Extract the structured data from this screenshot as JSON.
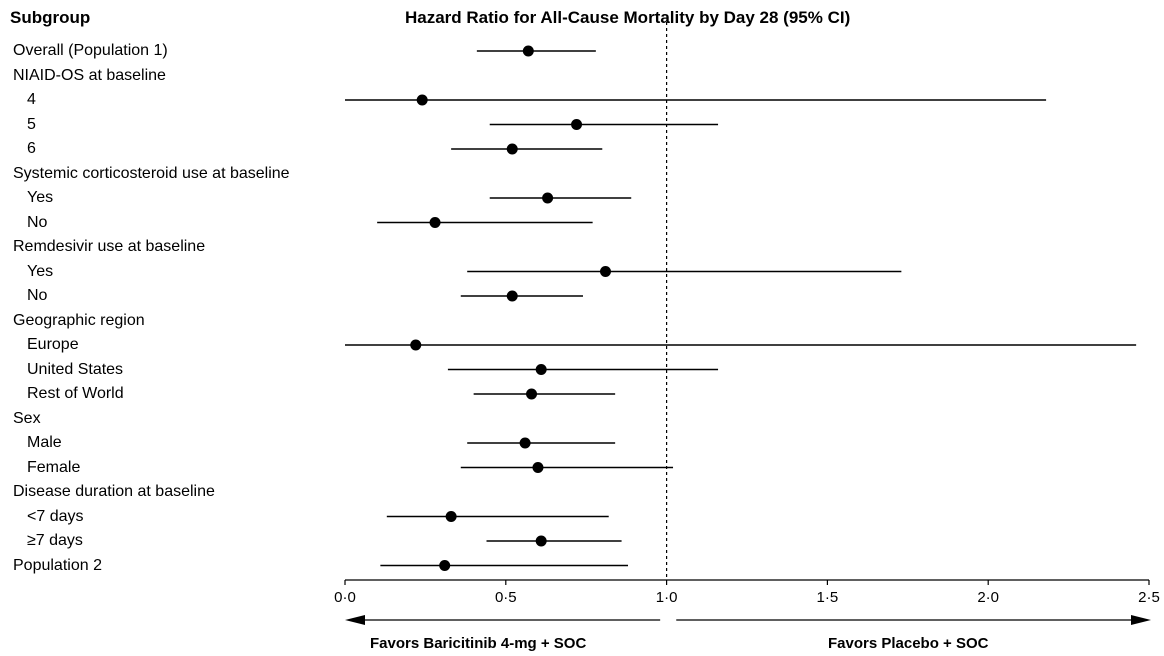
{
  "chart_data": {
    "type": "forest",
    "subgroup_header": "Subgroup",
    "title": "Hazard Ratio for All-Cause Mortality by Day 28 (95% CI)",
    "xlim": [
      0.0,
      2.5
    ],
    "xticks": [
      "0·0",
      "0·5",
      "1·0",
      "1·5",
      "2·0",
      "2·5"
    ],
    "xtick_values": [
      0.0,
      0.5,
      1.0,
      1.5,
      2.0,
      2.5
    ],
    "reference_line": 1.0,
    "favors_left": "Favors Baricitinib 4-mg + SOC",
    "favors_right": "Favors Placebo + SOC",
    "rows": [
      {
        "label": "Overall (Population 1)",
        "indent": false,
        "hr": 0.57,
        "lo": 0.41,
        "hi": 0.78
      },
      {
        "label": "NIAID-OS at baseline",
        "indent": false
      },
      {
        "label": "4",
        "indent": true,
        "hr": 0.24,
        "lo": 0.0,
        "hi": 2.18
      },
      {
        "label": "5",
        "indent": true,
        "hr": 0.72,
        "lo": 0.45,
        "hi": 1.16
      },
      {
        "label": "6",
        "indent": true,
        "hr": 0.52,
        "lo": 0.33,
        "hi": 0.8
      },
      {
        "label": "Systemic corticosteroid use at baseline",
        "indent": false
      },
      {
        "label": "Yes",
        "indent": true,
        "hr": 0.63,
        "lo": 0.45,
        "hi": 0.89
      },
      {
        "label": "No",
        "indent": true,
        "hr": 0.28,
        "lo": 0.1,
        "hi": 0.77
      },
      {
        "label": "Remdesivir use at baseline",
        "indent": false
      },
      {
        "label": "Yes",
        "indent": true,
        "hr": 0.81,
        "lo": 0.38,
        "hi": 1.73
      },
      {
        "label": "No",
        "indent": true,
        "hr": 0.52,
        "lo": 0.36,
        "hi": 0.74
      },
      {
        "label": "Geographic region",
        "indent": false
      },
      {
        "label": "Europe",
        "indent": true,
        "hr": 0.22,
        "lo": 0.0,
        "hi": 2.46
      },
      {
        "label": "United States",
        "indent": true,
        "hr": 0.61,
        "lo": 0.32,
        "hi": 1.16
      },
      {
        "label": "Rest of World",
        "indent": true,
        "hr": 0.58,
        "lo": 0.4,
        "hi": 0.84
      },
      {
        "label": "Sex",
        "indent": false
      },
      {
        "label": "Male",
        "indent": true,
        "hr": 0.56,
        "lo": 0.38,
        "hi": 0.84
      },
      {
        "label": "Female",
        "indent": true,
        "hr": 0.6,
        "lo": 0.36,
        "hi": 1.02
      },
      {
        "label": "Disease duration at baseline",
        "indent": false
      },
      {
        "label": "<7 days",
        "indent": true,
        "hr": 0.33,
        "lo": 0.13,
        "hi": 0.82
      },
      {
        "label": "≥7 days",
        "indent": true,
        "hr": 0.61,
        "lo": 0.44,
        "hi": 0.86
      },
      {
        "label": "Population 2",
        "indent": false,
        "hr": 0.31,
        "lo": 0.11,
        "hi": 0.88
      }
    ]
  }
}
